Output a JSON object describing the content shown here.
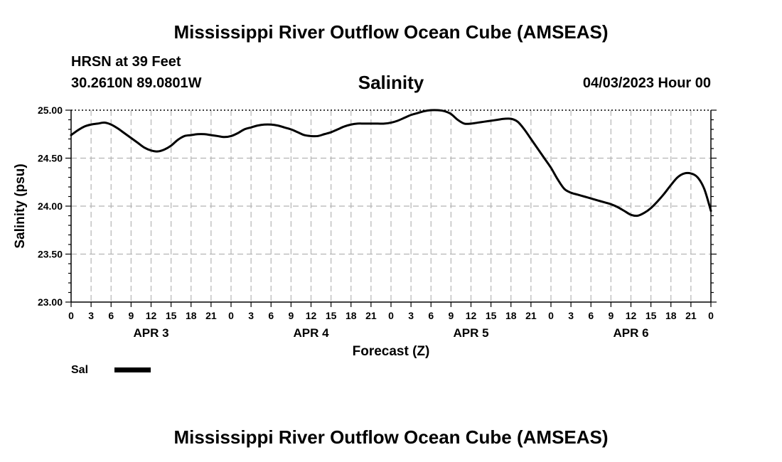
{
  "header": {
    "title": "Mississippi River Outflow Ocean Cube (AMSEAS)",
    "station": "HRSN at 39 Feet",
    "coordinates": "30.2610N  89.0801W",
    "datetime": "04/03/2023 Hour 00"
  },
  "footer": {
    "title": "Mississippi River Outflow Ocean Cube (AMSEAS)"
  },
  "chart_data": {
    "type": "line",
    "title": "Salinity",
    "xlabel": "Forecast (Z)",
    "ylabel": "Salinity (psu)",
    "xlim": [
      0,
      96
    ],
    "ylim": [
      23.0,
      25.0
    ],
    "y_ticks": [
      "23.00",
      "23.50",
      "24.00",
      "24.50",
      "25.00"
    ],
    "y_tick_values": [
      23.0,
      23.5,
      24.0,
      24.5,
      25.0
    ],
    "x_tick_labels": [
      "0",
      "3",
      "6",
      "9",
      "12",
      "15",
      "18",
      "21",
      "0",
      "3",
      "6",
      "9",
      "12",
      "15",
      "18",
      "21",
      "0",
      "3",
      "6",
      "9",
      "12",
      "15",
      "18",
      "21",
      "0",
      "3",
      "6",
      "9",
      "12",
      "15",
      "18",
      "21",
      "0"
    ],
    "day_labels": [
      {
        "label": "APR 3",
        "hour": 12
      },
      {
        "label": "APR 4",
        "hour": 36
      },
      {
        "label": "APR 5",
        "hour": 60
      },
      {
        "label": "APR 6",
        "hour": 84
      }
    ],
    "grid": true,
    "legend": {
      "placement": "bottom-left",
      "label": "Sal"
    },
    "series": [
      {
        "name": "Sal",
        "color": "#000000",
        "x": [
          0,
          1,
          2,
          3,
          4,
          5,
          6,
          7,
          8,
          9,
          10,
          11,
          12,
          13,
          14,
          15,
          16,
          17,
          18,
          19,
          20,
          21,
          22,
          23,
          24,
          25,
          26,
          27,
          28,
          29,
          30,
          31,
          32,
          33,
          34,
          35,
          36,
          37,
          38,
          39,
          40,
          41,
          42,
          43,
          44,
          45,
          46,
          47,
          48,
          49,
          50,
          51,
          52,
          53,
          54,
          55,
          56,
          57,
          58,
          59,
          60,
          61,
          62,
          63,
          64,
          65,
          66,
          67,
          68,
          69,
          70,
          71,
          72,
          73,
          74,
          75,
          76,
          77,
          78,
          79,
          80,
          81,
          82,
          83,
          84,
          85,
          86,
          87,
          88,
          89,
          90,
          91,
          92,
          93,
          94,
          95,
          96
        ],
        "y": [
          24.74,
          24.79,
          24.83,
          24.85,
          24.86,
          24.87,
          24.85,
          24.81,
          24.76,
          24.71,
          24.66,
          24.61,
          24.58,
          24.57,
          24.59,
          24.63,
          24.69,
          24.73,
          24.74,
          24.75,
          24.75,
          24.74,
          24.73,
          24.72,
          24.73,
          24.76,
          24.8,
          24.82,
          24.84,
          24.85,
          24.85,
          24.84,
          24.82,
          24.8,
          24.77,
          24.74,
          24.73,
          24.73,
          24.75,
          24.77,
          24.8,
          24.83,
          24.85,
          24.86,
          24.86,
          24.86,
          24.86,
          24.86,
          24.87,
          24.89,
          24.92,
          24.95,
          24.97,
          24.99,
          25.0,
          25.0,
          24.99,
          24.96,
          24.9,
          24.86,
          24.86,
          24.87,
          24.88,
          24.89,
          24.9,
          24.91,
          24.91,
          24.88,
          24.8,
          24.7,
          24.6,
          24.5,
          24.4,
          24.28,
          24.18,
          24.14,
          24.12,
          24.1,
          24.08,
          24.06,
          24.04,
          24.02,
          23.99,
          23.95,
          23.91,
          23.9,
          23.93,
          23.98,
          24.05,
          24.13,
          24.22,
          24.3,
          24.34,
          24.34,
          24.3,
          24.18,
          23.95
        ]
      }
    ]
  }
}
